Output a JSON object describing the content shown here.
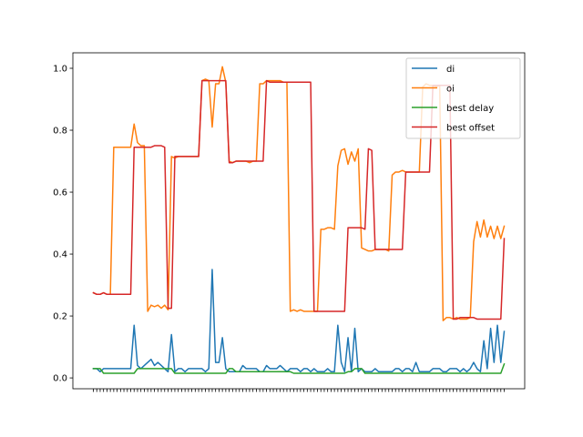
{
  "chart_data": {
    "type": "line",
    "title": "",
    "xlabel": "",
    "ylabel": "",
    "ylim": [
      -0.035,
      1.05
    ],
    "yticks": [
      0.0,
      0.2,
      0.4,
      0.6,
      0.8,
      1.0
    ],
    "ytick_labels": [
      "0.0",
      "0.2",
      "0.4",
      "0.6",
      "0.8",
      "1.0"
    ],
    "grid": false,
    "legend_position": "top-right",
    "point_count": 122,
    "series": [
      {
        "name": "di",
        "color": "#1f77b4",
        "values": [
          0.03,
          0.03,
          0.02,
          0.03,
          0.03,
          0.03,
          0.03,
          0.03,
          0.03,
          0.03,
          0.03,
          0.03,
          0.17,
          0.04,
          0.03,
          0.04,
          0.05,
          0.06,
          0.04,
          0.05,
          0.04,
          0.03,
          0.02,
          0.14,
          0.02,
          0.03,
          0.03,
          0.02,
          0.03,
          0.03,
          0.03,
          0.03,
          0.03,
          0.02,
          0.03,
          0.35,
          0.05,
          0.05,
          0.13,
          0.03,
          0.02,
          0.02,
          0.02,
          0.02,
          0.04,
          0.03,
          0.03,
          0.03,
          0.03,
          0.02,
          0.02,
          0.04,
          0.03,
          0.03,
          0.03,
          0.04,
          0.03,
          0.02,
          0.03,
          0.03,
          0.03,
          0.02,
          0.03,
          0.03,
          0.02,
          0.03,
          0.02,
          0.02,
          0.02,
          0.03,
          0.02,
          0.02,
          0.17,
          0.05,
          0.02,
          0.13,
          0.02,
          0.16,
          0.02,
          0.03,
          0.02,
          0.02,
          0.02,
          0.03,
          0.02,
          0.02,
          0.02,
          0.02,
          0.02,
          0.03,
          0.03,
          0.02,
          0.03,
          0.03,
          0.02,
          0.05,
          0.02,
          0.02,
          0.02,
          0.02,
          0.03,
          0.03,
          0.03,
          0.02,
          0.02,
          0.03,
          0.03,
          0.03,
          0.02,
          0.03,
          0.02,
          0.03,
          0.05,
          0.03,
          0.02,
          0.12,
          0.03,
          0.16,
          0.05,
          0.17,
          0.05,
          0.15
        ]
      },
      {
        "name": "oi",
        "color": "#ff7f0e",
        "values": [
          0.275,
          0.27,
          0.27,
          0.275,
          0.27,
          0.27,
          0.745,
          0.745,
          0.745,
          0.745,
          0.745,
          0.745,
          0.82,
          0.76,
          0.75,
          0.75,
          0.215,
          0.235,
          0.23,
          0.235,
          0.225,
          0.235,
          0.22,
          0.715,
          0.71,
          0.715,
          0.715,
          0.715,
          0.715,
          0.715,
          0.715,
          0.715,
          0.96,
          0.965,
          0.96,
          0.81,
          0.95,
          0.95,
          1.005,
          0.955,
          0.7,
          0.695,
          0.7,
          0.7,
          0.7,
          0.7,
          0.695,
          0.7,
          0.7,
          0.95,
          0.95,
          0.96,
          0.96,
          0.96,
          0.96,
          0.96,
          0.955,
          0.955,
          0.215,
          0.22,
          0.215,
          0.22,
          0.215,
          0.215,
          0.215,
          0.215,
          0.215,
          0.48,
          0.48,
          0.485,
          0.485,
          0.48,
          0.685,
          0.735,
          0.74,
          0.69,
          0.73,
          0.7,
          0.74,
          0.42,
          0.415,
          0.41,
          0.41,
          0.415,
          0.415,
          0.415,
          0.415,
          0.41,
          0.655,
          0.665,
          0.665,
          0.67,
          0.665,
          0.665,
          0.665,
          0.665,
          0.665,
          0.94,
          0.95,
          0.945,
          0.945,
          0.94,
          0.945,
          0.185,
          0.195,
          0.195,
          0.19,
          0.195,
          0.19,
          0.19,
          0.19,
          0.195,
          0.44,
          0.505,
          0.455,
          0.51,
          0.455,
          0.49,
          0.45,
          0.49,
          0.45,
          0.49
        ]
      },
      {
        "name": "best delay",
        "color": "#2ca02c",
        "values": [
          0.03,
          0.03,
          0.03,
          0.015,
          0.015,
          0.015,
          0.015,
          0.015,
          0.015,
          0.015,
          0.015,
          0.015,
          0.015,
          0.03,
          0.03,
          0.03,
          0.03,
          0.03,
          0.03,
          0.03,
          0.03,
          0.03,
          0.03,
          0.03,
          0.015,
          0.015,
          0.015,
          0.015,
          0.015,
          0.015,
          0.015,
          0.015,
          0.015,
          0.015,
          0.015,
          0.015,
          0.015,
          0.015,
          0.015,
          0.015,
          0.03,
          0.03,
          0.02,
          0.02,
          0.02,
          0.02,
          0.02,
          0.02,
          0.02,
          0.02,
          0.02,
          0.02,
          0.02,
          0.02,
          0.02,
          0.02,
          0.02,
          0.02,
          0.02,
          0.015,
          0.015,
          0.015,
          0.015,
          0.015,
          0.015,
          0.015,
          0.015,
          0.015,
          0.015,
          0.015,
          0.015,
          0.015,
          0.015,
          0.015,
          0.015,
          0.02,
          0.02,
          0.03,
          0.03,
          0.03,
          0.015,
          0.015,
          0.015,
          0.015,
          0.015,
          0.015,
          0.015,
          0.015,
          0.015,
          0.015,
          0.015,
          0.015,
          0.015,
          0.015,
          0.015,
          0.015,
          0.015,
          0.015,
          0.015,
          0.015,
          0.015,
          0.015,
          0.015,
          0.015,
          0.015,
          0.015,
          0.015,
          0.015,
          0.015,
          0.015,
          0.015,
          0.015,
          0.015,
          0.015,
          0.015,
          0.015,
          0.015,
          0.015,
          0.015,
          0.015,
          0.015,
          0.045
        ]
      },
      {
        "name": "best offset",
        "color": "#d62728",
        "values": [
          0.275,
          0.27,
          0.27,
          0.275,
          0.27,
          0.27,
          0.27,
          0.27,
          0.27,
          0.27,
          0.27,
          0.27,
          0.745,
          0.745,
          0.745,
          0.745,
          0.745,
          0.745,
          0.75,
          0.75,
          0.75,
          0.745,
          0.225,
          0.225,
          0.715,
          0.715,
          0.715,
          0.715,
          0.715,
          0.715,
          0.715,
          0.715,
          0.96,
          0.96,
          0.96,
          0.96,
          0.96,
          0.96,
          0.96,
          0.96,
          0.695,
          0.695,
          0.7,
          0.7,
          0.7,
          0.7,
          0.7,
          0.7,
          0.7,
          0.7,
          0.7,
          0.96,
          0.955,
          0.955,
          0.955,
          0.955,
          0.955,
          0.955,
          0.955,
          0.955,
          0.955,
          0.955,
          0.955,
          0.955,
          0.955,
          0.215,
          0.215,
          0.215,
          0.215,
          0.215,
          0.215,
          0.215,
          0.215,
          0.215,
          0.215,
          0.485,
          0.485,
          0.485,
          0.485,
          0.485,
          0.48,
          0.74,
          0.735,
          0.415,
          0.415,
          0.415,
          0.415,
          0.415,
          0.415,
          0.415,
          0.415,
          0.415,
          0.665,
          0.665,
          0.665,
          0.665,
          0.665,
          0.665,
          0.665,
          0.665,
          0.945,
          0.945,
          0.945,
          0.945,
          0.945,
          0.945,
          0.19,
          0.19,
          0.195,
          0.195,
          0.195,
          0.195,
          0.195,
          0.19,
          0.19,
          0.19,
          0.19,
          0.19,
          0.19,
          0.19,
          0.19,
          0.45
        ]
      }
    ]
  }
}
